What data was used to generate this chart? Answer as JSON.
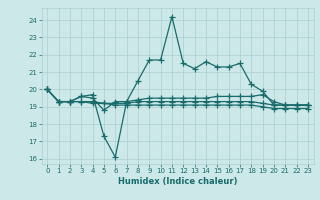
{
  "title": "",
  "xlabel": "Humidex (Indice chaleur)",
  "xlim": [
    -0.5,
    23.5
  ],
  "ylim": [
    15.7,
    24.7
  ],
  "yticks": [
    16,
    17,
    18,
    19,
    20,
    21,
    22,
    23,
    24
  ],
  "xticks": [
    0,
    1,
    2,
    3,
    4,
    5,
    6,
    7,
    8,
    9,
    10,
    11,
    12,
    13,
    14,
    15,
    16,
    17,
    18,
    19,
    20,
    21,
    22,
    23
  ],
  "bg_color": "#cce8e8",
  "grid_color": "#aacfcf",
  "line_color": "#1a6b6b",
  "line_width": 0.9,
  "marker": "+",
  "marker_size": 4,
  "series": [
    [
      20.0,
      19.3,
      19.3,
      19.6,
      19.7,
      17.3,
      16.1,
      19.3,
      20.5,
      21.7,
      21.7,
      24.2,
      21.5,
      21.2,
      21.6,
      21.3,
      21.3,
      21.5,
      20.3,
      19.9,
      19.1,
      19.1,
      19.1,
      19.1
    ],
    [
      20.0,
      19.3,
      19.3,
      19.6,
      19.5,
      18.8,
      19.3,
      19.3,
      19.4,
      19.5,
      19.5,
      19.5,
      19.5,
      19.5,
      19.5,
      19.6,
      19.6,
      19.6,
      19.6,
      19.7,
      19.3,
      19.1,
      19.1,
      19.1
    ],
    [
      20.0,
      19.3,
      19.3,
      19.3,
      19.3,
      19.2,
      19.2,
      19.2,
      19.3,
      19.3,
      19.3,
      19.3,
      19.3,
      19.3,
      19.3,
      19.3,
      19.3,
      19.3,
      19.3,
      19.2,
      19.1,
      19.1,
      19.1,
      19.1
    ],
    [
      20.0,
      19.3,
      19.3,
      19.3,
      19.2,
      19.2,
      19.1,
      19.1,
      19.1,
      19.1,
      19.1,
      19.1,
      19.1,
      19.1,
      19.1,
      19.1,
      19.1,
      19.1,
      19.1,
      19.0,
      18.9,
      18.9,
      18.9,
      18.9
    ]
  ]
}
